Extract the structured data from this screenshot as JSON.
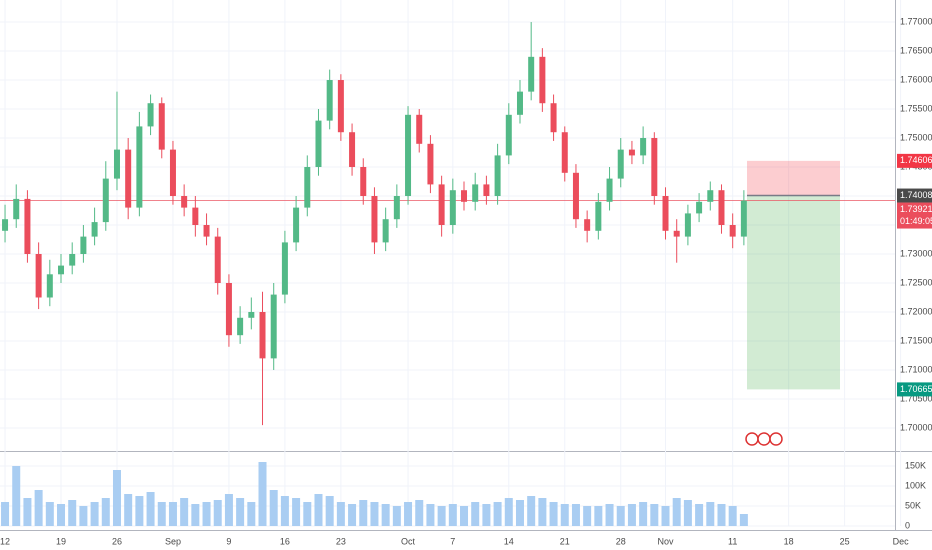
{
  "chart_data": {
    "type": "candlestick",
    "up_color": "#53b987",
    "down_color": "#eb4d5c",
    "open": [
      1.734,
      1.736,
      1.7395,
      1.73,
      1.7225,
      1.7265,
      1.728,
      1.73,
      1.733,
      1.7355,
      1.743,
      1.748,
      1.738,
      1.752,
      1.756,
      1.748,
      1.74,
      1.738,
      1.735,
      1.733,
      1.725,
      1.716,
      1.719,
      1.72,
      1.712,
      1.723,
      1.732,
      1.738,
      1.745,
      1.753,
      1.76,
      1.751,
      1.745,
      1.74,
      1.732,
      1.736,
      1.74,
      1.754,
      1.749,
      1.742,
      1.735,
      1.741,
      1.739,
      1.742,
      1.74,
      1.747,
      1.754,
      1.758,
      1.764,
      1.756,
      1.751,
      1.744,
      1.736,
      1.734,
      1.739,
      1.743,
      1.748,
      1.747,
      1.75,
      1.74,
      1.734,
      1.733,
      1.737,
      1.739,
      1.741,
      1.735,
      1.733
    ],
    "high": [
      1.7385,
      1.742,
      1.741,
      1.732,
      1.729,
      1.73,
      1.732,
      1.735,
      1.738,
      1.746,
      1.758,
      1.75,
      1.7545,
      1.7575,
      1.757,
      1.7495,
      1.742,
      1.74,
      1.737,
      1.7345,
      1.7265,
      1.721,
      1.7225,
      1.7235,
      1.725,
      1.734,
      1.74,
      1.747,
      1.755,
      1.7618,
      1.761,
      1.7525,
      1.7465,
      1.7415,
      1.738,
      1.742,
      1.7555,
      1.755,
      1.7505,
      1.7435,
      1.743,
      1.7425,
      1.744,
      1.7435,
      1.749,
      1.756,
      1.76,
      1.77,
      1.7655,
      1.7575,
      1.752,
      1.7455,
      1.7375,
      1.7405,
      1.745,
      1.75,
      1.7495,
      1.752,
      1.751,
      1.7415,
      1.736,
      1.7385,
      1.7405,
      1.7425,
      1.742,
      1.737,
      1.741
    ],
    "low": [
      1.732,
      1.7345,
      1.7285,
      1.7205,
      1.721,
      1.725,
      1.7265,
      1.7285,
      1.7315,
      1.734,
      1.741,
      1.736,
      1.7365,
      1.7505,
      1.7465,
      1.7385,
      1.7365,
      1.733,
      1.7315,
      1.723,
      1.714,
      1.7145,
      1.717,
      1.7005,
      1.71,
      1.7215,
      1.7305,
      1.7365,
      1.7435,
      1.7515,
      1.7495,
      1.7435,
      1.7385,
      1.73,
      1.7305,
      1.7345,
      1.7385,
      1.7475,
      1.7405,
      1.733,
      1.7335,
      1.7375,
      1.7375,
      1.7385,
      1.7385,
      1.7455,
      1.7525,
      1.7565,
      1.7545,
      1.7495,
      1.7425,
      1.7345,
      1.732,
      1.7325,
      1.7375,
      1.7415,
      1.7455,
      1.7455,
      1.7385,
      1.7325,
      1.7285,
      1.7315,
      1.7355,
      1.7375,
      1.7335,
      1.731,
      1.7315
    ],
    "close": [
      1.736,
      1.7395,
      1.73,
      1.7225,
      1.7265,
      1.728,
      1.73,
      1.733,
      1.7355,
      1.743,
      1.748,
      1.738,
      1.752,
      1.756,
      1.748,
      1.74,
      1.738,
      1.735,
      1.733,
      1.725,
      1.716,
      1.719,
      1.72,
      1.712,
      1.723,
      1.732,
      1.738,
      1.745,
      1.753,
      1.76,
      1.751,
      1.745,
      1.74,
      1.732,
      1.736,
      1.74,
      1.754,
      1.749,
      1.742,
      1.735,
      1.741,
      1.739,
      1.742,
      1.74,
      1.747,
      1.754,
      1.758,
      1.764,
      1.756,
      1.751,
      1.744,
      1.736,
      1.734,
      1.739,
      1.743,
      1.748,
      1.747,
      1.75,
      1.74,
      1.734,
      1.733,
      1.737,
      1.739,
      1.741,
      1.735,
      1.733,
      1.73921
    ],
    "ylim": [
      1.6962,
      1.7738
    ],
    "yticks": [
      {
        "value": 1.7,
        "label": "1.70000"
      },
      {
        "value": 1.705,
        "label": "1.70500"
      },
      {
        "value": 1.71,
        "label": "1.71000"
      },
      {
        "value": 1.715,
        "label": "1.71500"
      },
      {
        "value": 1.72,
        "label": "1.72000"
      },
      {
        "value": 1.725,
        "label": "1.72500"
      },
      {
        "value": 1.73,
        "label": "1.73000"
      },
      {
        "value": 1.735,
        "label": "1.73500"
      },
      {
        "value": 1.74,
        "label": "1.74000"
      },
      {
        "value": 1.745,
        "label": "1.74500"
      },
      {
        "value": 1.75,
        "label": "1.75000"
      },
      {
        "value": 1.755,
        "label": "1.75500"
      },
      {
        "value": 1.76,
        "label": "1.76000"
      },
      {
        "value": 1.765,
        "label": "1.76500"
      },
      {
        "value": 1.77,
        "label": "1.77000"
      }
    ],
    "xlim": [
      -0.45,
      79.5
    ],
    "xticks": [
      {
        "value": 0,
        "label": "12"
      },
      {
        "value": 5,
        "label": "19"
      },
      {
        "value": 10,
        "label": "26"
      },
      {
        "value": 15,
        "label": "Sep"
      },
      {
        "value": 20,
        "label": "9"
      },
      {
        "value": 25,
        "label": "16"
      },
      {
        "value": 30,
        "label": "23"
      },
      {
        "value": 36,
        "label": "Oct"
      },
      {
        "value": 40,
        "label": "7"
      },
      {
        "value": 45,
        "label": "14"
      },
      {
        "value": 50,
        "label": "21"
      },
      {
        "value": 55,
        "label": "28"
      },
      {
        "value": 59,
        "label": "Nov"
      },
      {
        "value": 65,
        "label": "11"
      },
      {
        "value": 70,
        "label": "18"
      },
      {
        "value": 75,
        "label": "25"
      },
      {
        "value": 80,
        "label": "Dec"
      }
    ],
    "grid": true,
    "last_price": 1.73921,
    "countdown": "01:49:05",
    "position": {
      "stop": 1.74606,
      "entry": 1.74008,
      "target": 1.70665
    },
    "volume": {
      "color": "#a9cdf2",
      "values": [
        60000,
        150000,
        70000,
        90000,
        60000,
        55000,
        65000,
        50000,
        60000,
        70000,
        140000,
        80000,
        75000,
        85000,
        60000,
        60000,
        70000,
        55000,
        60000,
        65000,
        80000,
        70000,
        60000,
        160000,
        90000,
        75000,
        70000,
        60000,
        80000,
        75000,
        60000,
        55000,
        65000,
        60000,
        55000,
        50000,
        60000,
        65000,
        55000,
        50000,
        55000,
        50000,
        60000,
        55000,
        60000,
        70000,
        65000,
        75000,
        70000,
        60000,
        55000,
        55000,
        50000,
        50000,
        55000,
        50000,
        55000,
        60000,
        55000,
        50000,
        70000,
        65000,
        55000,
        60000,
        55000,
        50000,
        30000
      ],
      "ylim": [
        0,
        185000
      ],
      "yticks": [
        0,
        {
          "value": 50000,
          "label": "50K"
        },
        {
          "value": 100000,
          "label": "100K"
        },
        {
          "value": 150000,
          "label": "150K"
        }
      ]
    }
  }
}
